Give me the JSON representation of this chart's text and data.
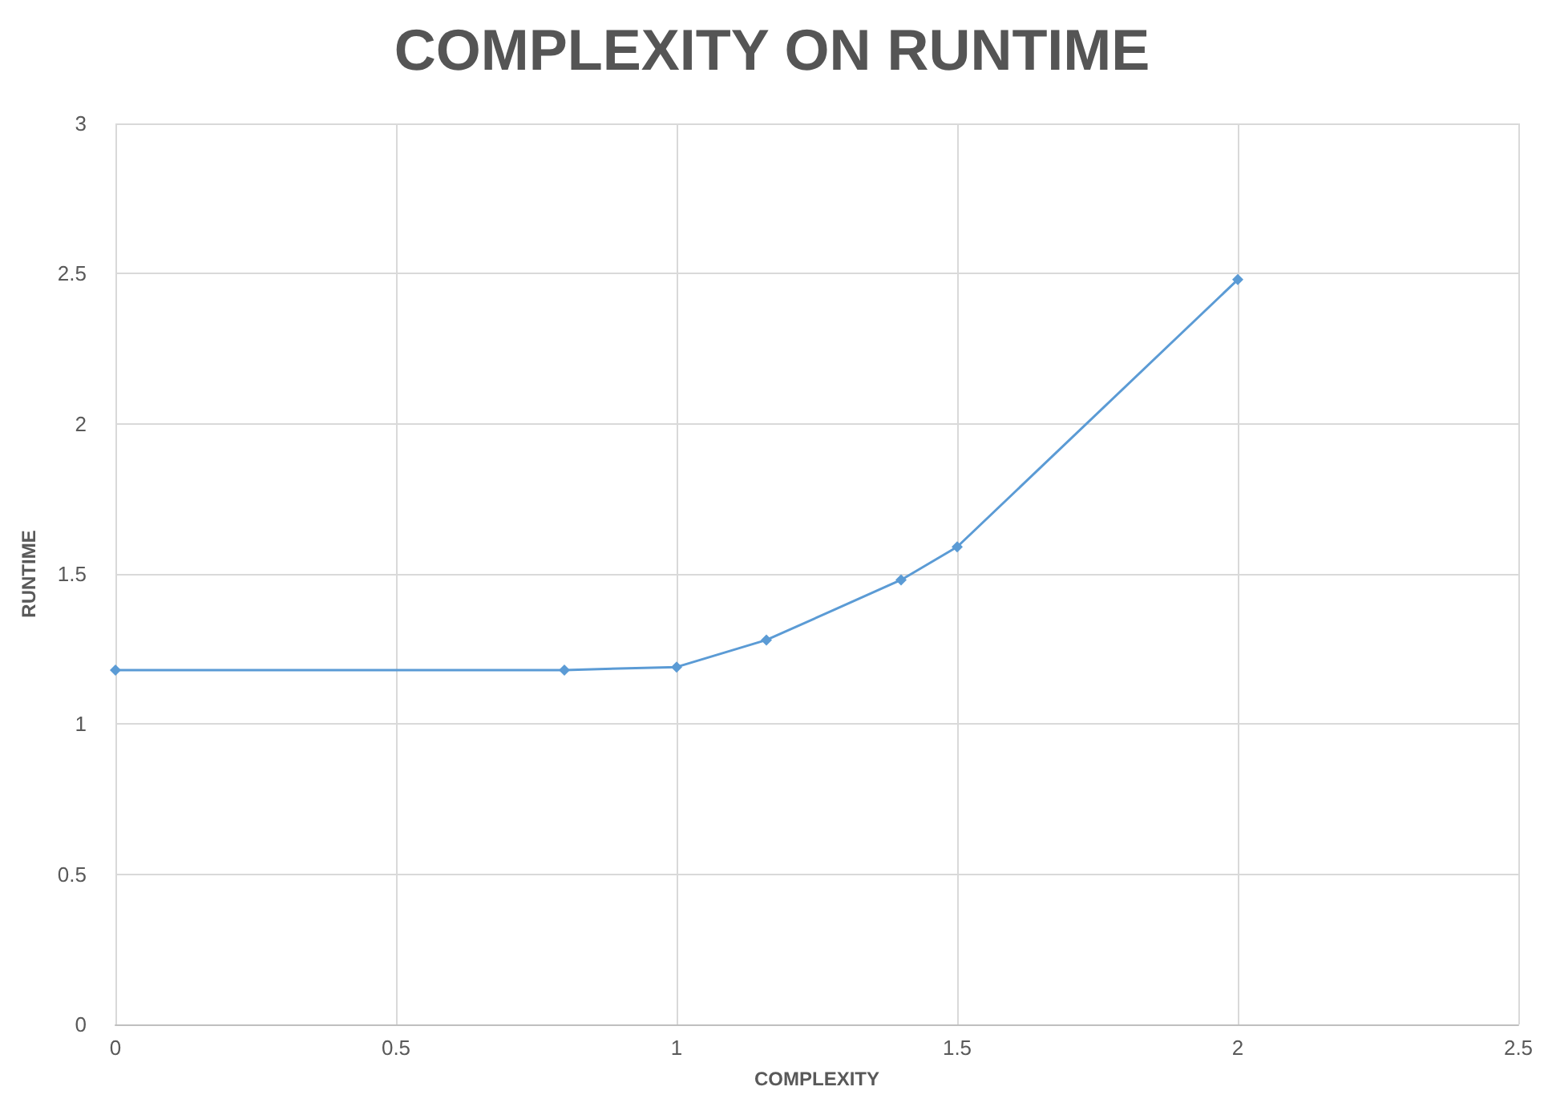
{
  "chart_data": {
    "type": "line",
    "title": "COMPLEXITY ON RUNTIME",
    "xlabel": "COMPLEXITY",
    "ylabel": "RUNTIME",
    "x": [
      0,
      0.8,
      1.0,
      1.16,
      1.4,
      1.5,
      2.0
    ],
    "series": [
      {
        "color": "#5b9bd5",
        "values": [
          1.18,
          1.18,
          1.19,
          1.28,
          1.48,
          1.59,
          2.48
        ]
      }
    ],
    "xlim": [
      0,
      2.5
    ],
    "xticks": [
      0,
      0.5,
      1,
      1.5,
      2,
      2.5
    ],
    "ylim": [
      0,
      3
    ],
    "yticks": [
      0,
      0.5,
      1,
      1.5,
      2,
      2.5,
      3
    ],
    "grid": true,
    "marker": "diamond",
    "line_style": "solid"
  }
}
